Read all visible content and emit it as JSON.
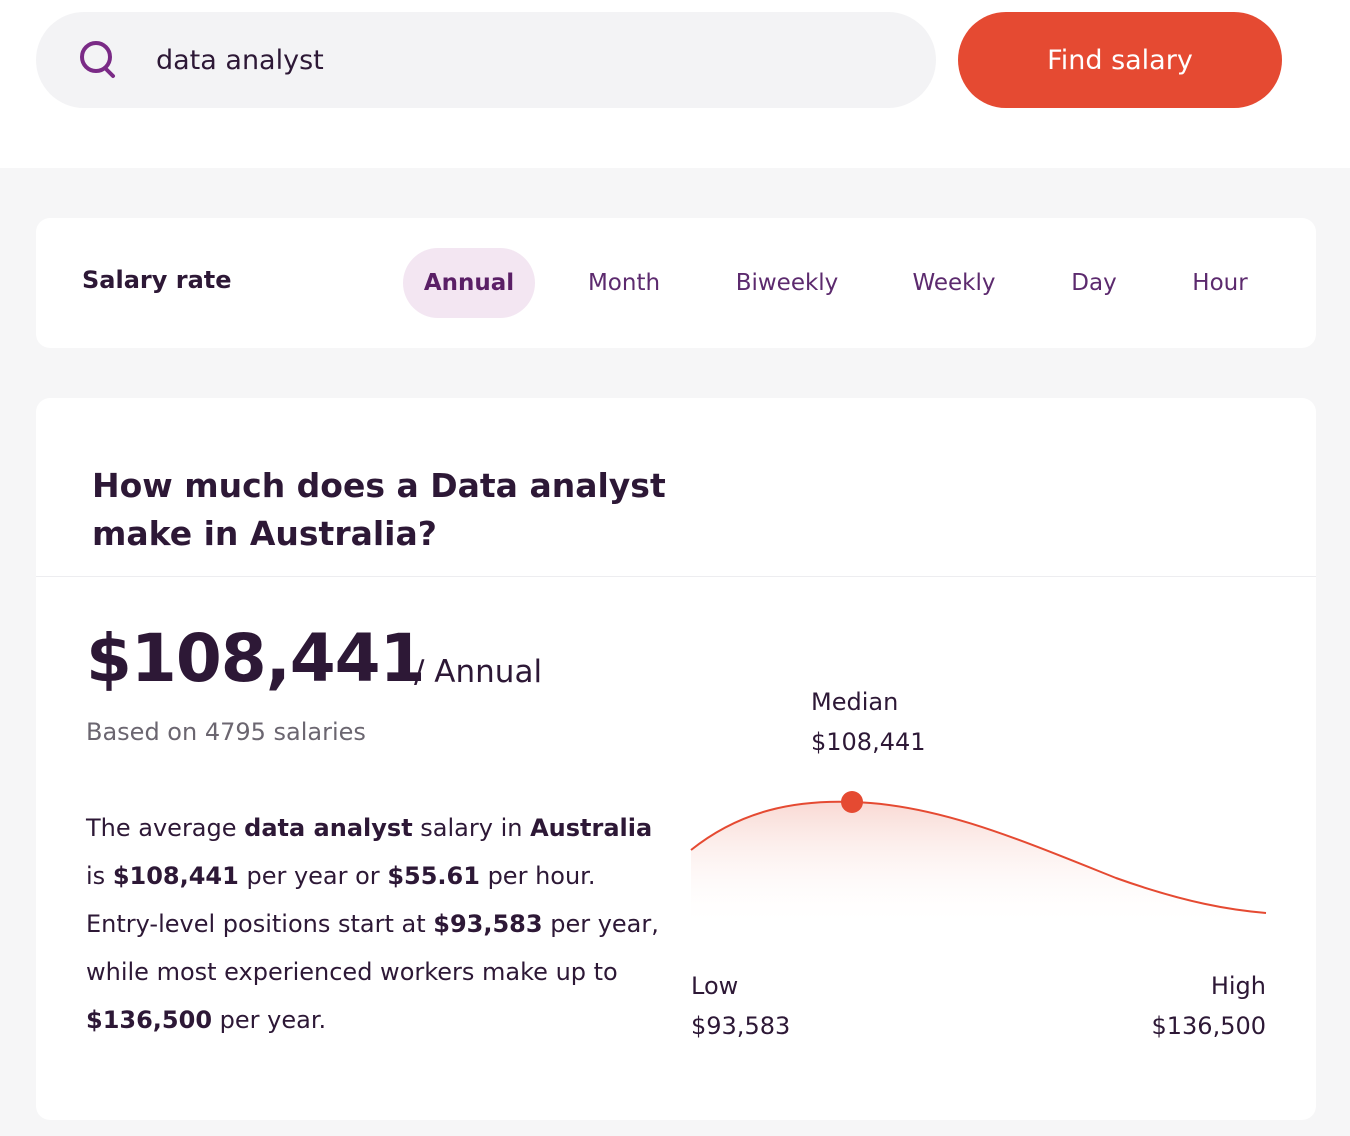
{
  "search": {
    "value": "data analyst",
    "button_label": "Find salary"
  },
  "rate": {
    "label": "Salary rate",
    "tabs": [
      "Annual",
      "Month",
      "Biweekly",
      "Weekly",
      "Day",
      "Hour"
    ],
    "active": "Annual"
  },
  "result": {
    "heading": "How much does a Data analyst make in Australia?",
    "amount": "$108,441",
    "period": "/ Annual",
    "based_on": "Based on 4795 salaries",
    "description": {
      "t1": "The average ",
      "b1": "data analyst",
      "t2": " salary in ",
      "b2": "Australia",
      "t3": " is ",
      "b3": "$108,441",
      "t4": " per year or ",
      "b4": "$55.61",
      "t5": " per hour. Entry-level positions start at ",
      "b5": "$93,583",
      "t6": " per year, while most experienced workers make up to ",
      "b6": "$136,500",
      "t7": " per year."
    }
  },
  "chart_data": {
    "type": "area",
    "points": [
      {
        "name": "Low",
        "value": "$93,583",
        "amount": 93583
      },
      {
        "name": "Median",
        "value": "$108,441",
        "amount": 108441
      },
      {
        "name": "High",
        "value": "$136,500",
        "amount": 136500
      }
    ]
  },
  "colors": {
    "accent": "#e54a32",
    "brand": "#5c2a6e",
    "text": "#2d1836"
  }
}
